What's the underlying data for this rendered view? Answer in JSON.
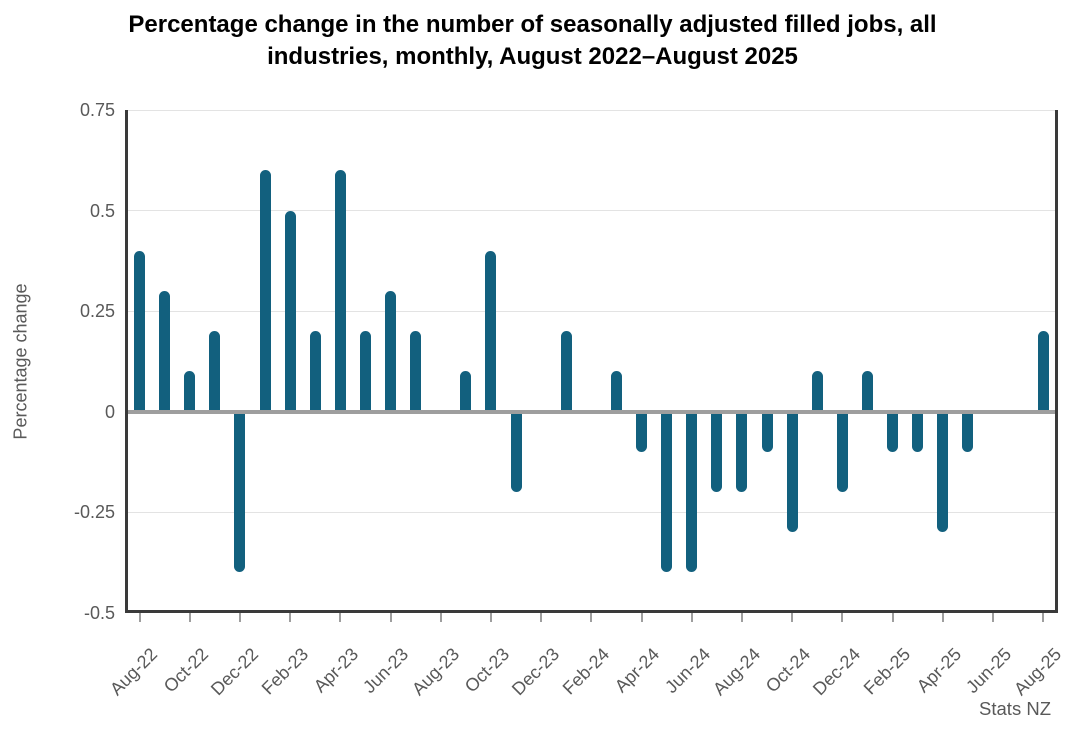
{
  "title": {
    "full": "Percentage change in the number of seasonally adjusted filled jobs, all industries, monthly, August 2022–August 2025",
    "line1": "Percentage change in the number of seasonally adjusted filled jobs, all",
    "line2": "industries, monthly, August 2022–August 2025"
  },
  "source": "Stats NZ",
  "y_axis": {
    "label": "Percentage change",
    "tick_labels": [
      "0.75",
      "0.5",
      "0.25",
      "0",
      "-0.25",
      "-0.5"
    ]
  },
  "x_axis": {
    "labeled_every_n_months": 2
  },
  "colors": {
    "bar": "#12607E",
    "zero_line": "#9E9E9E",
    "axis": "#3A3A3A",
    "gridline": "#E3E3E3",
    "tick_mark": "#9E9E9E",
    "label_text": "#595959",
    "title_text": "#000000",
    "background": "#FFFFFF"
  },
  "chart_data": {
    "type": "bar",
    "title": "Percentage change in the number of seasonally adjusted filled jobs, all industries, monthly, August 2022–August 2025",
    "xlabel": "",
    "ylabel": "Percentage change",
    "ylim": [
      -0.5,
      0.75
    ],
    "yticks": [
      0.75,
      0.5,
      0.25,
      0,
      -0.25,
      -0.5
    ],
    "grid": true,
    "legend": false,
    "bar_color": "#12607E",
    "categories": [
      "Aug-22",
      "Sep-22",
      "Oct-22",
      "Nov-22",
      "Dec-22",
      "Jan-23",
      "Feb-23",
      "Mar-23",
      "Apr-23",
      "May-23",
      "Jun-23",
      "Jul-23",
      "Aug-23",
      "Sep-23",
      "Oct-23",
      "Nov-23",
      "Dec-23",
      "Jan-24",
      "Feb-24",
      "Mar-24",
      "Apr-24",
      "May-24",
      "Jun-24",
      "Jul-24",
      "Aug-24",
      "Sep-24",
      "Oct-24",
      "Nov-24",
      "Dec-24",
      "Jan-25",
      "Feb-25",
      "Mar-25",
      "Apr-25",
      "May-25",
      "Jun-25",
      "Jul-25",
      "Aug-25"
    ],
    "values": [
      0.4,
      0.3,
      0.1,
      0.2,
      -0.4,
      0.6,
      0.5,
      0.2,
      0.6,
      0.2,
      0.3,
      0.2,
      0.0,
      0.1,
      0.4,
      -0.2,
      0.0,
      0.2,
      0.0,
      0.1,
      -0.1,
      -0.4,
      -0.4,
      -0.2,
      -0.2,
      -0.1,
      -0.3,
      0.1,
      -0.2,
      0.1,
      -0.1,
      -0.1,
      -0.3,
      -0.1,
      0.0,
      0.0,
      0.2
    ],
    "x_tick_labels": [
      "Aug-22",
      "Oct-22",
      "Dec-22",
      "Feb-23",
      "Apr-23",
      "Jun-23",
      "Aug-23",
      "Oct-23",
      "Dec-23",
      "Feb-24",
      "Apr-24",
      "Jun-24",
      "Aug-24",
      "Oct-24",
      "Dec-24",
      "Feb-25",
      "Apr-25",
      "Jun-25",
      "Aug-25"
    ],
    "source": "Stats NZ"
  }
}
